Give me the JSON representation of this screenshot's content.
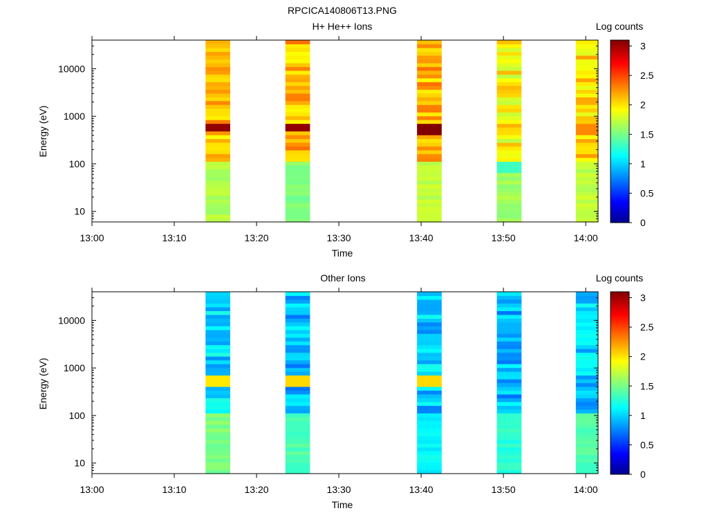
{
  "figure_title": "RPCICA140806T13.PNG",
  "chart_data": [
    {
      "type": "heatmap",
      "title": "H+ He++ Ions",
      "xlabel": "Time",
      "ylabel": "Energy (eV)",
      "x_ticks": [
        "13:00",
        "13:10",
        "13:20",
        "13:30",
        "13:40",
        "13:50",
        "14:00"
      ],
      "y_ticks": [
        "10",
        "100",
        "1000",
        "10000"
      ],
      "y_scale": "log",
      "ylim": [
        6,
        40000
      ],
      "xlim_minutes": [
        0,
        61.5
      ],
      "colorbar": {
        "label": "Log counts",
        "ticks": [
          "0",
          "0.5",
          "1",
          "1.5",
          "2",
          "2.5",
          "3"
        ],
        "range": [
          0,
          3.1
        ]
      },
      "segments": [
        {
          "start_min": 13.8,
          "end_min": 16.8,
          "peak_energy": 580,
          "peak_value": 3.05,
          "high_level": 2.15,
          "low_level": 1.7
        },
        {
          "start_min": 23.5,
          "end_min": 26.5,
          "peak_energy": 580,
          "peak_value": 3.05,
          "high_level": 2.15,
          "low_level": 1.55
        },
        {
          "start_min": 39.5,
          "end_min": 42.5,
          "peak_energy": 560,
          "peak_value": 3.1,
          "high_level": 2.15,
          "low_level": 1.75
        },
        {
          "start_min": 49.2,
          "end_min": 52.2,
          "peak_energy": 90,
          "peak_value": 1.35,
          "high_level": 1.95,
          "low_level": 1.65
        },
        {
          "start_min": 58.8,
          "end_min": 61.8,
          "peak_energy": 560,
          "peak_value": 2.3,
          "high_level": 2.05,
          "low_level": 1.75
        }
      ]
    },
    {
      "type": "heatmap",
      "title": "Other Ions",
      "xlabel": "Time",
      "ylabel": "Energy (eV)",
      "x_ticks": [
        "13:00",
        "13:10",
        "13:20",
        "13:30",
        "13:40",
        "13:50",
        "14:00"
      ],
      "y_ticks": [
        "10",
        "100",
        "1000",
        "10000"
      ],
      "y_scale": "log",
      "ylim": [
        6,
        40000
      ],
      "xlim_minutes": [
        0,
        61.5
      ],
      "colorbar": {
        "label": "Log counts",
        "ticks": [
          "0",
          "0.5",
          "1",
          "1.5",
          "2",
          "2.5",
          "3"
        ],
        "range": [
          0,
          3.1
        ]
      },
      "segments": [
        {
          "start_min": 13.8,
          "end_min": 16.8,
          "peak_energy": 560,
          "peak_value": 2.0,
          "high_level": 1.05,
          "low_level": 1.55
        },
        {
          "start_min": 23.5,
          "end_min": 26.5,
          "peak_energy": 560,
          "peak_value": 2.05,
          "high_level": 0.95,
          "low_level": 1.4
        },
        {
          "start_min": 39.5,
          "end_min": 42.5,
          "peak_energy": 560,
          "peak_value": 2.05,
          "high_level": 1.0,
          "low_level": 1.15
        },
        {
          "start_min": 49.2,
          "end_min": 52.2,
          "peak_energy": 0,
          "peak_value": 0,
          "high_level": 0.95,
          "low_level": 1.3
        },
        {
          "start_min": 58.8,
          "end_min": 61.8,
          "peak_energy": 0,
          "peak_value": 0,
          "high_level": 1.0,
          "low_level": 1.4
        }
      ]
    }
  ]
}
